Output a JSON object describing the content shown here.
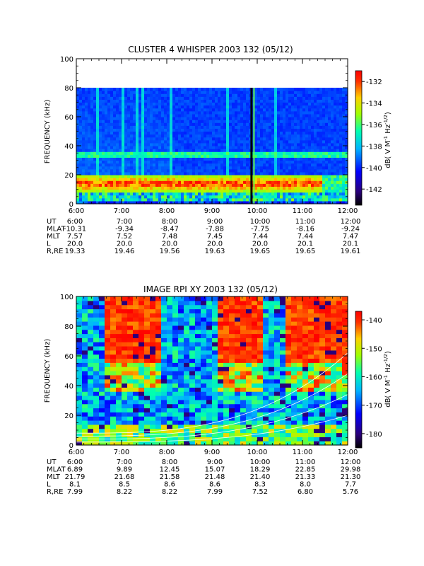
{
  "chart_data": [
    {
      "type": "heatmap",
      "title": "CLUSTER 4 WHISPER 2003 132 (05/12)",
      "ylabel": "FREQUENCY (kHz)",
      "ylim": [
        0,
        100
      ],
      "yticks": [
        "0",
        "20",
        "40",
        "60",
        "80",
        "100"
      ],
      "xticks": [
        "6:00",
        "7:00",
        "8:00",
        "9:00",
        "10:00",
        "11:00",
        "12:00"
      ],
      "colorbar": {
        "label": "dB( V M-1 Hz-1/2)",
        "range": [
          -143.5,
          -131
        ],
        "ticks": [
          "-132",
          "-134",
          "-136",
          "-138",
          "-140",
          "-142"
        ]
      },
      "data_top_khz": 80,
      "ephemeris": {
        "rows": [
          {
            "label": "UT",
            "values": [
              "6:00",
              "7:00",
              "8:00",
              "9:00",
              "10:00",
              "11:00",
              "12:00"
            ]
          },
          {
            "label": "MLAT",
            "values": [
              "-10.31",
              "-9.34",
              "-8.47",
              "-7.88",
              "-7.75",
              "-8.16",
              "-9.24"
            ]
          },
          {
            "label": "MLT",
            "values": [
              "7.57",
              "7.52",
              "7.48",
              "7.45",
              "7.44",
              "7.44",
              "7.47"
            ]
          },
          {
            "label": "L",
            "values": [
              "20.0",
              "20.0",
              "20.0",
              "20.0",
              "20.0",
              "20.1",
              "20.1"
            ]
          },
          {
            "label": "R,RE",
            "values": [
              "19.33",
              "19.46",
              "19.56",
              "19.63",
              "19.65",
              "19.65",
              "19.61"
            ]
          }
        ]
      }
    },
    {
      "type": "heatmap",
      "title": "IMAGE RPI XY 2003 132 (05/12)",
      "ylabel": "FREQUENCY (kHz)",
      "ylim": [
        0,
        100
      ],
      "yticks": [
        "0",
        "20",
        "40",
        "60",
        "80",
        "100"
      ],
      "xticks": [
        "6:00",
        "7:00",
        "8:00",
        "9:00",
        "10:00",
        "11:00",
        "12:00"
      ],
      "colorbar": {
        "label": "dB( V M-1 Hz-1/2)",
        "range": [
          -185,
          -137
        ],
        "ticks": [
          "-140",
          "-150",
          "-160",
          "-170",
          "-180"
        ]
      },
      "ephemeris": {
        "rows": [
          {
            "label": "UT",
            "values": [
              "6:00",
              "7:00",
              "8:00",
              "9:00",
              "10:00",
              "11:00",
              "12:00"
            ]
          },
          {
            "label": "MLAT",
            "values": [
              "6.89",
              "9.89",
              "12.45",
              "15.07",
              "18.29",
              "22.85",
              "29.98"
            ]
          },
          {
            "label": "MLT",
            "values": [
              "21.79",
              "21.68",
              "21.58",
              "21.48",
              "21.40",
              "21.33",
              "21.30"
            ]
          },
          {
            "label": "L",
            "values": [
              "8.1",
              "8.5",
              "8.6",
              "8.6",
              "8.3",
              "8.0",
              "7.7"
            ]
          },
          {
            "label": "R,RE",
            "values": [
              "7.99",
              "8.22",
              "8.22",
              "7.99",
              "7.52",
              "6.80",
              "5.76"
            ]
          }
        ]
      }
    }
  ]
}
